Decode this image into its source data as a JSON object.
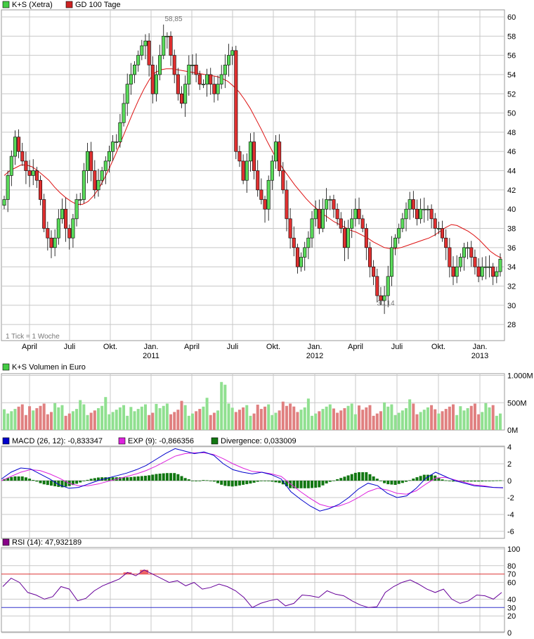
{
  "colors": {
    "up": "#5adb5a",
    "down": "#e03030",
    "ma": "#dd1111",
    "grid": "#c8c8c8",
    "frame": "#999999",
    "macd": "#0000cc",
    "exp": "#dd22dd",
    "divergence": "#117711",
    "rsi": "#660099",
    "rsi_upper": "#dd3333",
    "rsi_lower": "#3333cc",
    "vol_up": "#90e090",
    "vol_down": "#e08080"
  },
  "panels": {
    "price": {
      "legend": [
        {
          "label": "K+S (Xetra)",
          "color": "#44cc44"
        },
        {
          "label": "GD 100 Tage",
          "color": "#cc2222"
        }
      ],
      "note": "1 Tick = 1 Woche",
      "max_label": "58,85",
      "min_label": "30,14"
    },
    "volume": {
      "legend_label": "K+S Volumen in Euro",
      "legend_color": "#44cc44"
    },
    "macd": {
      "macd_label": "MACD (26, 12): -0,833347",
      "exp_label": "EXP (9): -0,866356",
      "div_label": "Divergence: 0,033009"
    },
    "rsi": {
      "label": "RSI (14): 47,932189",
      "legend_color": "#880088"
    }
  },
  "chart_data": [
    {
      "type": "candlestick",
      "title": "K+S (Xetra)",
      "y_ticks": [
        "60",
        "58",
        "56",
        "54",
        "52",
        "50",
        "48",
        "46",
        "44",
        "42",
        "40",
        "38",
        "36",
        "34",
        "32",
        "30",
        "28"
      ],
      "ylim": [
        26.5,
        61
      ],
      "x_ticks": [
        {
          "label": "April",
          "year": ""
        },
        {
          "label": "Juli",
          "year": ""
        },
        {
          "label": "Okt.",
          "year": ""
        },
        {
          "label": "Jan.",
          "year": "2011"
        },
        {
          "label": "April",
          "year": ""
        },
        {
          "label": "Juli",
          "year": ""
        },
        {
          "label": "Okt.",
          "year": ""
        },
        {
          "label": "Jan.",
          "year": "2012"
        },
        {
          "label": "April",
          "year": ""
        },
        {
          "label": "Juli",
          "year": ""
        },
        {
          "label": "Okt.",
          "year": ""
        },
        {
          "label": "Jan.",
          "year": "2013"
        }
      ],
      "series": [
        {
          "name": "K+S (Xetra)",
          "close_weekly": [
            41,
            43.5,
            45.5,
            47.5,
            46,
            45,
            44,
            43.5,
            44,
            43,
            41,
            38,
            37,
            36,
            37,
            39,
            40,
            38,
            37,
            39,
            41,
            41,
            44,
            46,
            44,
            42,
            43,
            44,
            45,
            46,
            47,
            47,
            49,
            51,
            53,
            54,
            55,
            56,
            57,
            57.5,
            55,
            52,
            54,
            56,
            58,
            58,
            56,
            54,
            52,
            51,
            53,
            55,
            55,
            54,
            53,
            53,
            54,
            53,
            52,
            53,
            54,
            55,
            56,
            56.5,
            46,
            45,
            43,
            45,
            47,
            44,
            42,
            41,
            40,
            43,
            45,
            47,
            44,
            42,
            39,
            37,
            36,
            34,
            35,
            36,
            37,
            39,
            40,
            38,
            40,
            41,
            41,
            40,
            39,
            38,
            36,
            38,
            39,
            40,
            39,
            38,
            36,
            34,
            33,
            31,
            30.5,
            31,
            33,
            36,
            37,
            38,
            39,
            40,
            41,
            40,
            39,
            40,
            40,
            40,
            39,
            38,
            38,
            37,
            36,
            34,
            33,
            34,
            35,
            36,
            36,
            35,
            34,
            33,
            34,
            34,
            34,
            33,
            33.5,
            34.8
          ]
        },
        {
          "name": "GD 100 Tage",
          "ma": [
            43.5,
            44,
            44.3,
            44.6,
            44.6,
            44.4,
            44,
            43.5,
            43,
            42.3,
            41.7,
            41.2,
            40.8,
            40.5,
            40.5,
            40.8,
            41.4,
            42.2,
            43.3,
            44.5,
            45.8,
            47.2,
            48.6,
            50,
            51.3,
            52.5,
            53.5,
            54.2,
            54.5,
            54.6,
            54.6,
            54.5,
            54.4,
            54.3,
            54.2,
            54.1,
            54,
            53.9,
            53.8,
            53.6,
            53.3,
            52.8,
            52.2,
            51.4,
            50.5,
            49.4,
            48.3,
            47.1,
            46,
            45,
            44.1,
            43.3,
            42.5,
            41.8,
            41.1,
            40.5,
            40,
            39.5,
            39.1,
            38.7,
            38.4,
            38.1,
            37.8,
            37.6,
            37.3,
            37,
            36.6,
            36.3,
            36,
            35.9,
            35.9,
            36,
            36.2,
            36.4,
            36.6,
            36.8,
            37,
            37.3,
            37.7,
            38.1,
            38.4,
            38.3,
            38,
            37.7,
            37.3,
            36.8,
            36.2,
            35.6,
            35.2,
            34.9
          ]
        }
      ]
    },
    {
      "type": "bar",
      "title": "K+S Volumen in Euro",
      "y_ticks": [
        "1.000M",
        "500M",
        "0M"
      ],
      "ylim": [
        0,
        1000
      ]
    },
    {
      "type": "line",
      "title": "MACD (26, 12)",
      "y_ticks": [
        "4",
        "2",
        "0",
        "-2",
        "-4",
        "-6"
      ],
      "ylim": [
        -6.2,
        4.2
      ],
      "series": [
        {
          "name": "MACD (26, 12)",
          "values": [
            0.2,
            1,
            1.5,
            1.4,
            0.8,
            0.2,
            -0.5,
            -0.9,
            -0.8,
            -0.4,
            0,
            0.3,
            0.6,
            0.9,
            1.3,
            1.8,
            2.5,
            3.2,
            3.8,
            3.5,
            3.2,
            3.4,
            3,
            2,
            1.3,
            1,
            0.8,
            1,
            0.7,
            0.2,
            -1.3,
            -2.2,
            -3,
            -3.6,
            -3.3,
            -2.8,
            -2,
            -1,
            -0.3,
            -0.6,
            -1.5,
            -2,
            -1.8,
            -0.9,
            0.3,
            1,
            0.5,
            0,
            -0.3,
            -0.6,
            -0.7,
            -0.8,
            -0.83
          ]
        },
        {
          "name": "EXP (9)",
          "values": [
            0,
            0.5,
            1,
            1.3,
            1.2,
            0.8,
            0.3,
            -0.3,
            -0.6,
            -0.6,
            -0.4,
            -0.1,
            0.2,
            0.5,
            0.8,
            1.2,
            1.7,
            2.3,
            2.9,
            3.2,
            3.3,
            3.3,
            3.1,
            2.6,
            2,
            1.5,
            1.1,
            1,
            0.8,
            0.5,
            -0.4,
            -1.3,
            -2.1,
            -2.8,
            -3.1,
            -3,
            -2.6,
            -2,
            -1.3,
            -0.9,
            -1.1,
            -1.5,
            -1.6,
            -1.2,
            -0.4,
            0.3,
            0.4,
            0.1,
            -0.2,
            -0.5,
            -0.6,
            -0.8,
            -0.87
          ]
        }
      ]
    },
    {
      "type": "line",
      "title": "RSI (14)",
      "y_ticks": [
        "100",
        "80",
        "60",
        "40",
        "20",
        "0"
      ],
      "ylim": [
        0,
        100
      ],
      "upper": 70,
      "lower": 30,
      "upper_label": "70",
      "lower_label": "30",
      "series": [
        {
          "name": "RSI (14)",
          "values": [
            55,
            65,
            60,
            48,
            45,
            40,
            43,
            55,
            52,
            38,
            41,
            50,
            56,
            60,
            64,
            72,
            68,
            75,
            70,
            65,
            60,
            62,
            56,
            60,
            52,
            54,
            58,
            55,
            50,
            42,
            30,
            35,
            38,
            40,
            32,
            35,
            45,
            44,
            42,
            50,
            46,
            44,
            38,
            33,
            30,
            31,
            48,
            55,
            60,
            63,
            58,
            52,
            48,
            52,
            40,
            35,
            38,
            45,
            44,
            40,
            48
          ]
        }
      ]
    }
  ]
}
